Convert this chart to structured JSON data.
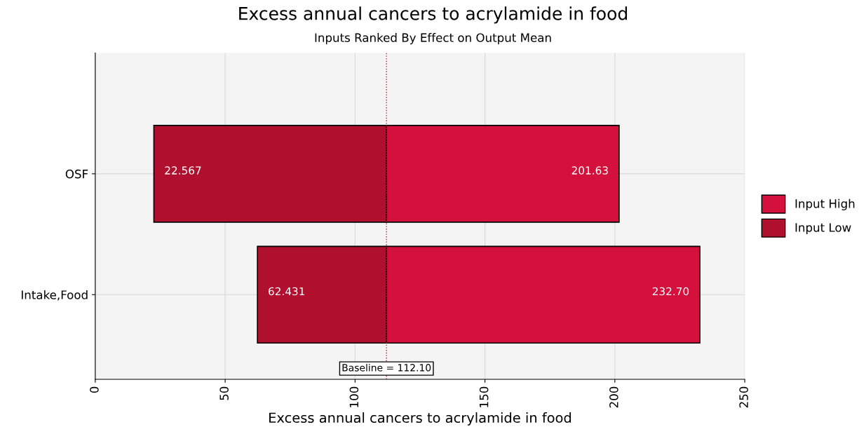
{
  "chart_data": {
    "type": "bar",
    "orientation": "horizontal",
    "title": "Excess annual cancers to acrylamide in food",
    "subtitle": "Inputs Ranked By Effect on Output Mean",
    "xlabel": "Excess annual cancers to acrylamide in food",
    "categories": [
      "OSF",
      "Intake,Food"
    ],
    "series": [
      {
        "name": "Input High",
        "color": "#d4103c",
        "base": [
          112.1,
          112.1
        ],
        "values": [
          89.53,
          120.6
        ],
        "value_labels": [
          "201.63",
          "232.70"
        ]
      },
      {
        "name": "Input Low",
        "color": "#b0102e",
        "base": [
          112.1,
          112.1
        ],
        "values": [
          -89.533,
          -49.669
        ],
        "value_labels": [
          "22.567",
          "62.431"
        ]
      }
    ],
    "xlim": [
      0,
      250
    ],
    "xticks": [
      0,
      50,
      100,
      150,
      200,
      250
    ],
    "ref_lines": [
      {
        "axis": "x",
        "value": 112.1,
        "label": "Baseline = 112.10",
        "color": "#d4103c",
        "line_style": "dotted"
      }
    ],
    "grid": true,
    "legend": "right"
  }
}
